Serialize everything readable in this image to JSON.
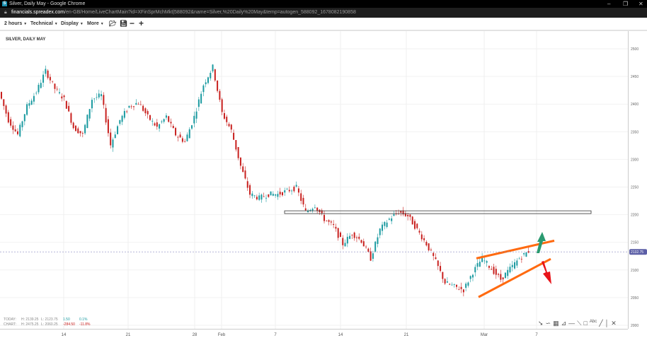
{
  "window": {
    "title": "Silver, Daily May - Google Chrome",
    "logo": "S",
    "url_host": "financials.spreadex.com",
    "url_path": "/en-GB/Home/LiveChartMain?id=XFinSprMchMkt|588092&name=Silver,%20Daily%20May&temp=autogen_588092_1678082190858"
  },
  "toolbar": {
    "interval": "2 hours",
    "technical": "Technical",
    "display": "Display",
    "more": "More",
    "icons": [
      "folder-open-icon",
      "save-icon",
      "zoom-out-icon",
      "zoom-in-icon"
    ]
  },
  "chart_title": "SILVER, DAILY MAY",
  "stats": {
    "today": {
      "label": "TODAY:",
      "high": "H: 2139.25",
      "low": "L: 2123.75",
      "change": "1.50",
      "pct": "0.1%"
    },
    "chart": {
      "label": "CHART:",
      "high": "H: 2475.25",
      "low": "L: 2060.25",
      "change": "-284.50",
      "pct": "-11.8%"
    }
  },
  "colors": {
    "up": "#1a9aa0",
    "down": "#c8201e",
    "trendline": "#ff6a10",
    "up_arrow": "#2a9a70",
    "down_arrow": "#e8141a",
    "price_label": "#5b5ea6"
  },
  "chart_data": {
    "type": "candlestick",
    "ylim": [
      2000,
      2500
    ],
    "yticks": [
      "2500",
      "2450",
      "2400",
      "2350",
      "2300",
      "2250",
      "2200",
      "2150",
      "2100",
      "2050",
      "2000"
    ],
    "xticks": [
      "14",
      "21",
      "28",
      "Feb",
      "7",
      "14",
      "21",
      "Mar",
      "7"
    ],
    "closes": [
      2422,
      2371,
      2345,
      2396,
      2422,
      2460,
      2428,
      2409,
      2358,
      2345,
      2409,
      2416,
      2326,
      2371,
      2396,
      2403,
      2377,
      2358,
      2377,
      2345,
      2332,
      2377,
      2435,
      2467,
      2384,
      2352,
      2288,
      2237,
      2230,
      2237,
      2237,
      2243,
      2249,
      2205,
      2217,
      2192,
      2179,
      2147,
      2166,
      2153,
      2121,
      2173,
      2192,
      2205,
      2198,
      2173,
      2147,
      2115,
      2077,
      2070,
      2064,
      2096,
      2121,
      2102,
      2083,
      2102,
      2121,
      2134
    ],
    "current_price": "2132.75",
    "annotations": {
      "resistance_zone": [
        2202,
        2207
      ],
      "upper_trendline": [
        2121,
        2153
      ],
      "lower_trendline": [
        2051,
        2120
      ]
    }
  }
}
